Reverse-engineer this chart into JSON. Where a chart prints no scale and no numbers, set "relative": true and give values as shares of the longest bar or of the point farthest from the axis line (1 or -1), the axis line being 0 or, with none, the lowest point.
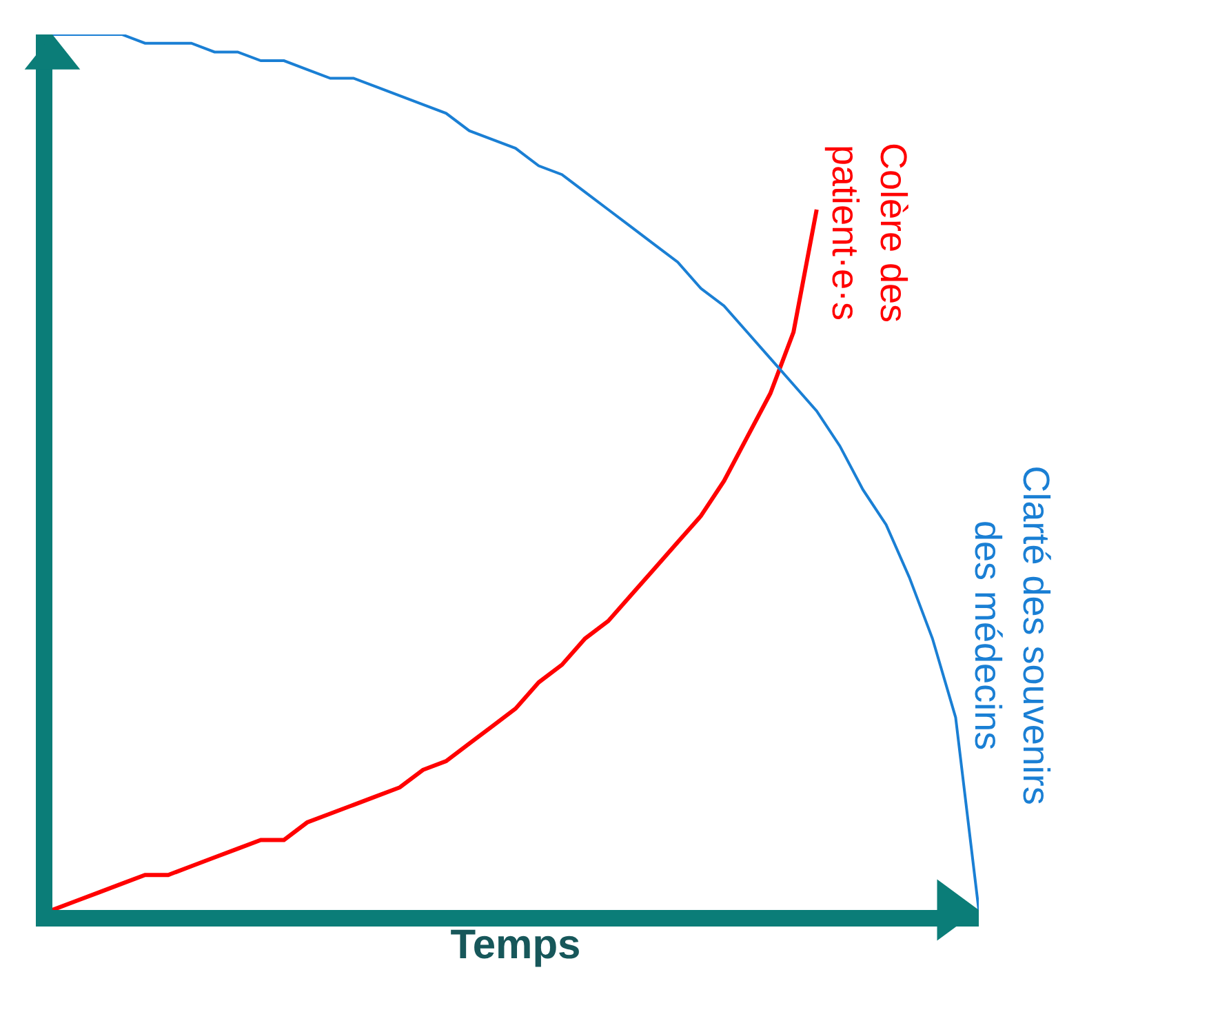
{
  "chart_data": {
    "type": "line",
    "relative": true,
    "xlabel": "Temps",
    "legend": false,
    "marker": "none",
    "line_style": "solid",
    "categories": [
      null,
      null,
      null,
      null,
      null,
      null,
      null,
      null,
      null,
      null,
      null,
      null,
      null,
      null,
      null,
      null,
      null,
      null,
      null,
      null,
      null,
      null,
      null,
      null,
      null,
      null,
      null,
      null,
      null,
      null,
      null,
      null,
      null,
      null,
      null,
      null,
      null,
      null,
      null,
      null,
      null
    ],
    "series": [
      {
        "name": "Colère des patient·e·s",
        "color": "#ff0000",
        "values": [
          0,
          0.01,
          0.02,
          0.03,
          0.04,
          0.04,
          0.05,
          0.06,
          0.07,
          0.08,
          0.08,
          0.1,
          0.11,
          0.12,
          0.13,
          0.14,
          0.16,
          0.17,
          0.19,
          0.21,
          0.23,
          0.26,
          0.28,
          0.31,
          0.33,
          0.36,
          0.39,
          0.42,
          0.45,
          0.49,
          0.54,
          0.59,
          0.66,
          0.8,
          null,
          null,
          null,
          null,
          null,
          null,
          null
        ]
      },
      {
        "name": "Clarté des souvenirs des médecins",
        "color": "#1a7fd4",
        "values": [
          1,
          1,
          1,
          1,
          0.99,
          0.99,
          0.99,
          0.98,
          0.98,
          0.97,
          0.97,
          0.96,
          0.95,
          0.95,
          0.94,
          0.93,
          0.92,
          0.91,
          0.89,
          0.88,
          0.87,
          0.85,
          0.84,
          0.82,
          0.8,
          0.78,
          0.76,
          0.74,
          0.71,
          0.69,
          0.66,
          0.63,
          0.6,
          0.57,
          0.53,
          0.48,
          0.44,
          0.38,
          0.31,
          0.22,
          0
        ]
      }
    ]
  }
}
